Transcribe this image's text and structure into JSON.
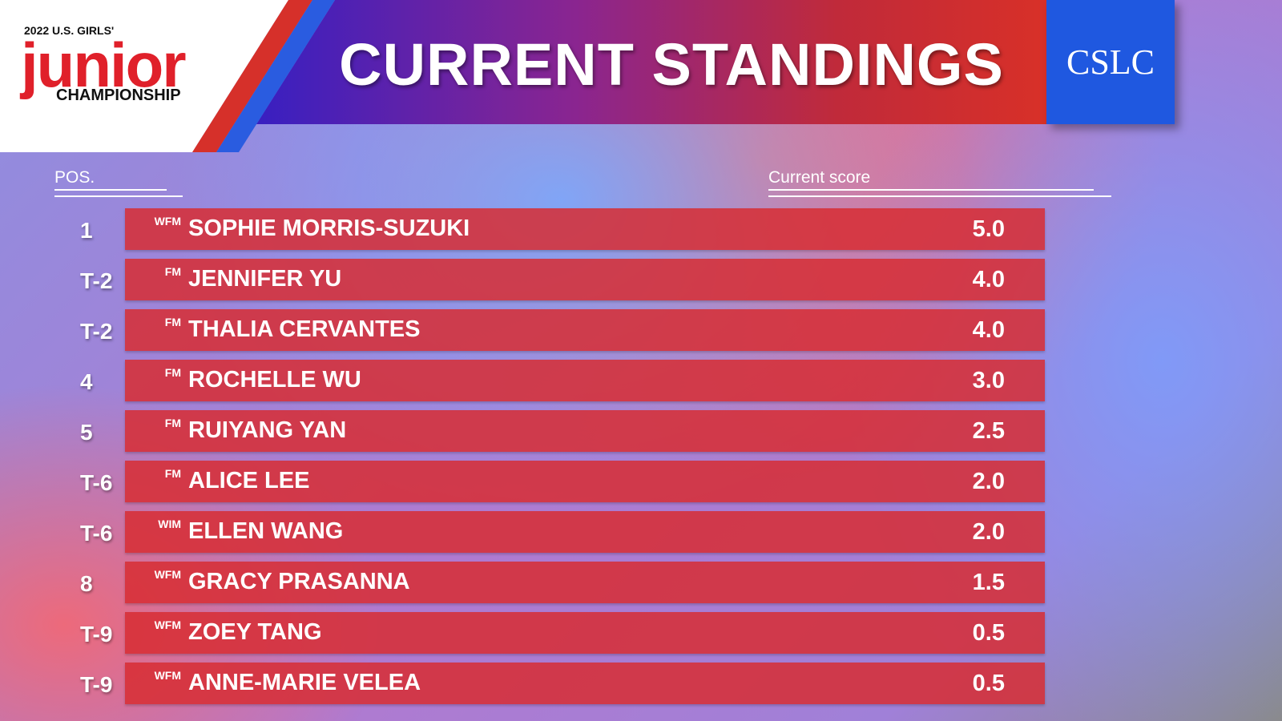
{
  "logo": {
    "year_line": "2022 U.S. GIRLS'",
    "word": "junior",
    "sub": "CHAMPIONSHIP"
  },
  "title": "CURRENT STANDINGS",
  "sponsor_logo": "CSLC",
  "headers": {
    "pos": "POS.",
    "score": "Current score"
  },
  "colors": {
    "row": "#d72d32",
    "banner_left": "#3a1fc0",
    "banner_right": "#d83028",
    "sponsor": "#1f58e0"
  },
  "rows": [
    {
      "pos": "1",
      "title": "WFM",
      "name": "SOPHIE MORRIS-SUZUKI",
      "score": "5.0"
    },
    {
      "pos": "T-2",
      "title": "FM",
      "name": "JENNIFER YU",
      "score": "4.0"
    },
    {
      "pos": "T-2",
      "title": "FM",
      "name": "THALIA CERVANTES",
      "score": "4.0"
    },
    {
      "pos": "4",
      "title": "FM",
      "name": "ROCHELLE WU",
      "score": "3.0"
    },
    {
      "pos": "5",
      "title": "FM",
      "name": "RUIYANG YAN",
      "score": "2.5"
    },
    {
      "pos": "T-6",
      "title": "FM",
      "name": "ALICE LEE",
      "score": "2.0"
    },
    {
      "pos": "T-6",
      "title": "WIM",
      "name": "ELLEN WANG",
      "score": "2.0"
    },
    {
      "pos": "8",
      "title": "WFM",
      "name": "GRACY PRASANNA",
      "score": "1.5"
    },
    {
      "pos": "T-9",
      "title": "WFM",
      "name": "ZOEY TANG",
      "score": "0.5"
    },
    {
      "pos": "T-9",
      "title": "WFM",
      "name": "ANNE-MARIE VELEA",
      "score": "0.5"
    }
  ]
}
